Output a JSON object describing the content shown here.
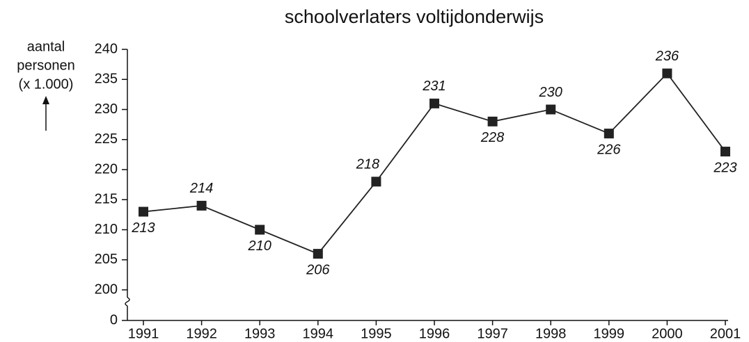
{
  "chart_data": {
    "type": "line",
    "title": "schoolverlaters voltijdonderwijs",
    "ylabel": [
      "aantal",
      "personen",
      "(x 1.000)"
    ],
    "categories": [
      "1991",
      "1992",
      "1993",
      "1994",
      "1995",
      "1996",
      "1997",
      "1998",
      "1999",
      "2000",
      "2001"
    ],
    "values": [
      213,
      214,
      210,
      206,
      218,
      231,
      228,
      230,
      226,
      236,
      223
    ],
    "color": "#222222",
    "ylim": [
      200,
      240
    ],
    "yticks": [
      0,
      200,
      205,
      210,
      215,
      220,
      225,
      230,
      235,
      240
    ],
    "axis_break": true,
    "grid": false
  }
}
